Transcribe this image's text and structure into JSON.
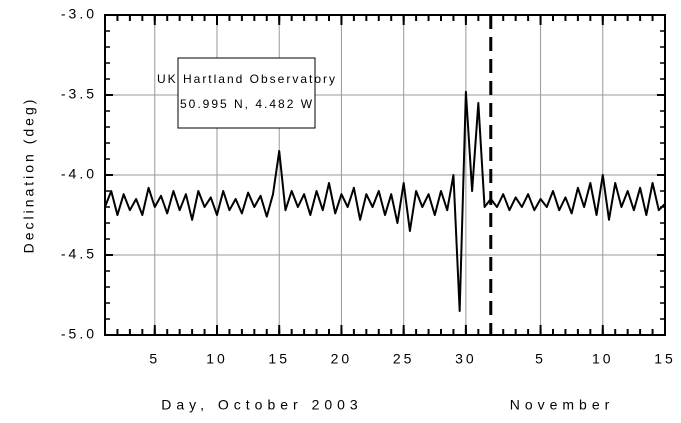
{
  "chart_data": {
    "type": "line",
    "y_label": "Declination (deg)",
    "x_label": "Day, October 2003",
    "x_label_2": "November",
    "annotation": [
      "UK Hartland Observatory",
      "50.995 N, 4.482 W"
    ],
    "color": "#000000",
    "xlim": [
      1,
      46
    ],
    "ylim": [
      -5,
      -3
    ],
    "xticks": [
      5,
      10,
      15,
      20,
      25,
      30,
      {
        "value": 36,
        "label": "5"
      },
      {
        "value": 41,
        "label": "10"
      },
      {
        "value": 46,
        "label": "15"
      }
    ],
    "yticks": [
      {
        "value": -3,
        "label": "-3.0"
      },
      -3.5,
      {
        "value": -4,
        "label": "-4.0"
      },
      -4.5,
      {
        "value": -5,
        "label": "-5.0"
      }
    ],
    "grid": true,
    "vline": 32,
    "x": [
      1,
      1.5,
      2,
      2.5,
      3,
      3.5,
      4,
      4.5,
      5,
      5.5,
      6,
      6.5,
      7,
      7.5,
      8,
      8.5,
      9,
      9.5,
      10,
      10.5,
      11,
      11.5,
      12,
      12.5,
      13,
      13.5,
      14,
      14.5,
      15,
      15.5,
      16,
      16.5,
      17,
      17.5,
      18,
      18.5,
      19,
      19.5,
      20,
      20.5,
      21,
      21.5,
      22,
      22.5,
      23,
      23.5,
      24,
      24.5,
      25,
      25.5,
      26,
      26.5,
      27,
      27.5,
      28,
      28.5,
      29,
      29.5,
      30,
      30.5,
      31,
      31.5,
      32,
      32.5,
      33,
      33.5,
      34,
      34.5,
      35,
      35.5,
      36,
      36.5,
      37,
      37.5,
      38,
      38.5,
      39,
      39.5,
      40,
      40.5,
      41,
      41.5,
      42,
      42.5,
      43,
      43.5,
      44,
      44.5,
      45,
      45.5,
      46
    ],
    "values": [
      -4.2,
      -4.1,
      -4.25,
      -4.12,
      -4.22,
      -4.15,
      -4.25,
      -4.08,
      -4.2,
      -4.13,
      -4.24,
      -4.1,
      -4.22,
      -4.12,
      -4.28,
      -4.1,
      -4.2,
      -4.14,
      -4.25,
      -4.1,
      -4.22,
      -4.15,
      -4.24,
      -4.11,
      -4.2,
      -4.13,
      -4.26,
      -4.12,
      -3.85,
      -4.22,
      -4.1,
      -4.2,
      -4.12,
      -4.25,
      -4.1,
      -4.22,
      -4.05,
      -4.24,
      -4.12,
      -4.2,
      -4.08,
      -4.28,
      -4.12,
      -4.2,
      -4.1,
      -4.25,
      -4.12,
      -4.3,
      -4.05,
      -4.35,
      -4.1,
      -4.2,
      -4.12,
      -4.25,
      -4.1,
      -4.22,
      -4.0,
      -4.85,
      -3.48,
      -4.1,
      -3.55,
      -4.2,
      -4.15,
      -4.2,
      -4.12,
      -4.22,
      -4.14,
      -4.2,
      -4.12,
      -4.22,
      -4.15,
      -4.2,
      -4.1,
      -4.22,
      -4.14,
      -4.24,
      -4.08,
      -4.2,
      -4.05,
      -4.25,
      -4.0,
      -4.28,
      -4.05,
      -4.2,
      -4.1,
      -4.22,
      -4.08,
      -4.25,
      -4.05,
      -4.22,
      -4.18
    ]
  }
}
